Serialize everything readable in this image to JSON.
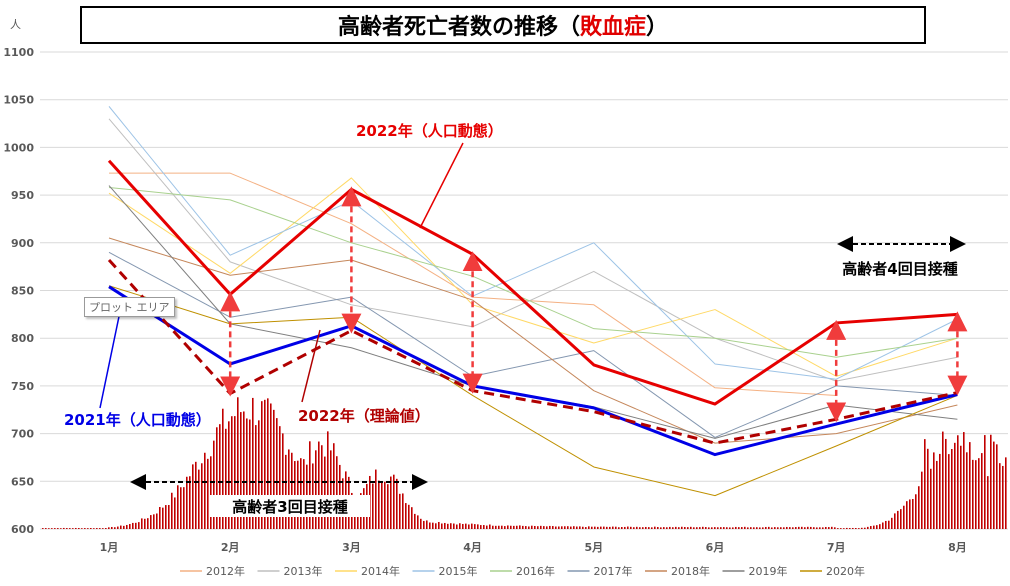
{
  "title": {
    "main": "高齢者死亡者数の推移（",
    "highlight": "敗血症",
    "tail": "）"
  },
  "tooltip": "プロット エリア",
  "annotations": {
    "y2022_actual": "2022年（人口動態）",
    "y2021_actual": "2021年（人口動態）",
    "y2022_theory": "2022年（理論値）",
    "vaccine3": "高齢者3回目接種",
    "vaccine4": "高齢者4回目接種"
  },
  "colors": {
    "y2022_actual": "#e60000",
    "y2021_actual": "#0000e6",
    "y2022_theory": "#b00000",
    "arrow": "#f03c3c",
    "bars": "#c00000",
    "grid": "#d9d9d9"
  },
  "chart_data": {
    "type": "line",
    "ylabel": "人",
    "ylim": [
      600,
      1100
    ],
    "yticks": [
      600,
      650,
      700,
      750,
      800,
      850,
      900,
      950,
      1000,
      1050,
      1100
    ],
    "categories": [
      "1月",
      "2月",
      "3月",
      "4月",
      "5月",
      "6月",
      "7月",
      "8月"
    ],
    "legend_position": "bottom",
    "series": [
      {
        "name": "2012年",
        "color": "#f4b183",
        "values": [
          973,
          973,
          920,
          843,
          835,
          748,
          740,
          null
        ]
      },
      {
        "name": "2013年",
        "color": "#bfbfbf",
        "values": [
          1030,
          880,
          835,
          812,
          870,
          800,
          755,
          780
        ]
      },
      {
        "name": "2014年",
        "color": "#ffd966",
        "values": [
          952,
          868,
          968,
          835,
          795,
          830,
          760,
          800
        ]
      },
      {
        "name": "2015年",
        "color": "#9dc3e6",
        "values": [
          1043,
          887,
          944,
          844,
          900,
          773,
          757,
          820
        ]
      },
      {
        "name": "2016年",
        "color": "#a9d18e",
        "values": [
          958,
          945,
          900,
          865,
          810,
          800,
          780,
          800
        ]
      },
      {
        "name": "2017年",
        "color": "#8497b0",
        "values": [
          890,
          822,
          843,
          760,
          787,
          696,
          750,
          740
        ]
      },
      {
        "name": "2018年",
        "color": "#c5875b",
        "values": [
          905,
          866,
          882,
          840,
          745,
          690,
          700,
          730
        ]
      },
      {
        "name": "2019年",
        "color": "#7f7f7f",
        "values": [
          960,
          815,
          790,
          750,
          728,
          695,
          730,
          715
        ]
      },
      {
        "name": "2020年",
        "color": "#bf9000",
        "values": [
          855,
          815,
          822,
          740,
          665,
          635,
          687,
          740
        ]
      },
      {
        "name": "2022年（人口動態）",
        "color": "#e60000",
        "values": [
          986,
          846,
          956,
          888,
          772,
          731,
          816,
          825
        ]
      },
      {
        "name": "2021年（人口動態）",
        "color": "#0000e6",
        "values": [
          854,
          773,
          813,
          750,
          727,
          678,
          710,
          741
        ]
      },
      {
        "name": "2022年（理論値）",
        "color": "#b00000",
        "dashed": true,
        "values": [
          882,
          742,
          808,
          745,
          723,
          690,
          715,
          743
        ]
      }
    ],
    "gap_arrows": [
      {
        "x": 1,
        "from": 846,
        "to": 742
      },
      {
        "x": 2,
        "from": 956,
        "to": 808
      },
      {
        "x": 3,
        "from": 888,
        "to": 745
      },
      {
        "x": 6,
        "from": 816,
        "to": 715
      },
      {
        "x": 7,
        "from": 825,
        "to": 743
      }
    ],
    "bar_bumps": [
      {
        "center": 1.15,
        "width": 0.55,
        "peak": 730
      },
      {
        "center": 1.75,
        "width": 0.28,
        "peak": 692
      },
      {
        "center": 2.25,
        "width": 0.25,
        "peak": 660
      },
      {
        "center": 7.0,
        "width": 0.38,
        "peak": 700
      },
      {
        "center": 7.4,
        "width": 0.25,
        "peak": 680
      }
    ]
  }
}
